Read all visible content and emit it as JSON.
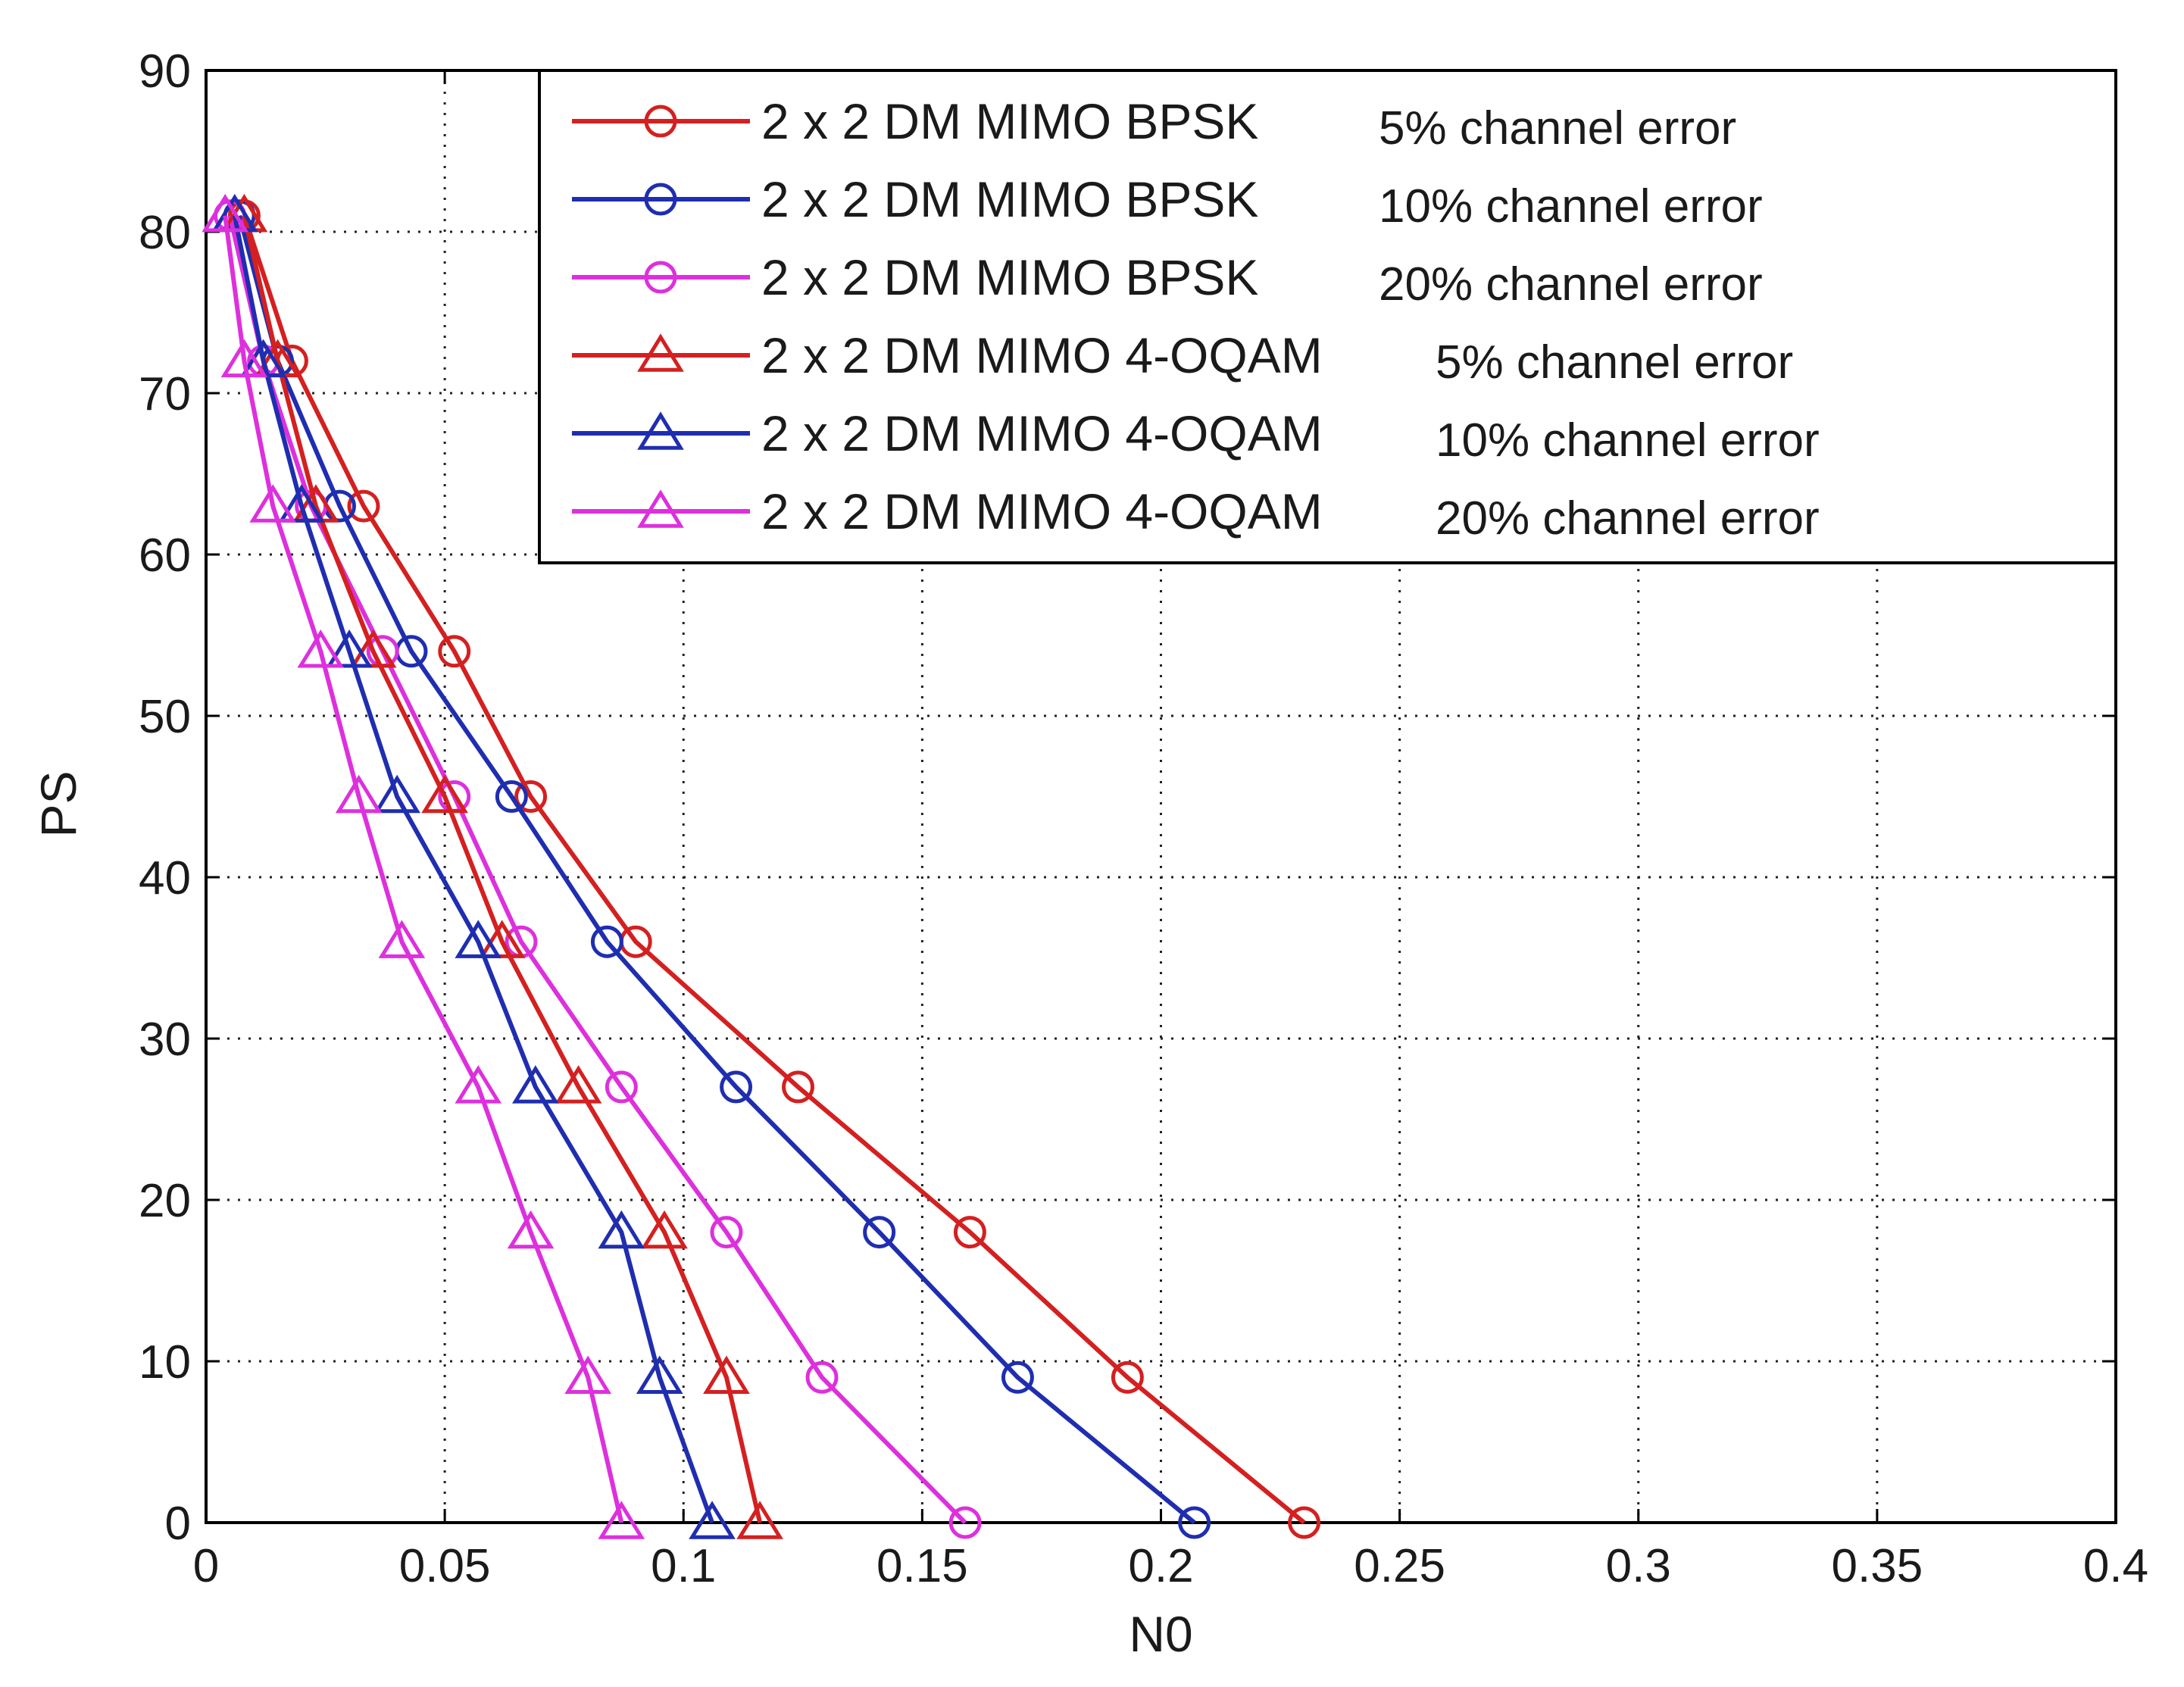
{
  "chart_data": {
    "type": "line",
    "title": "",
    "xlabel": "N0",
    "ylabel": "PS",
    "xlim": [
      0,
      0.4
    ],
    "ylim": [
      0,
      90
    ],
    "xticks": [
      0,
      0.05,
      0.1,
      0.15,
      0.2,
      0.25,
      0.3,
      0.35,
      0.4
    ],
    "xtick_labels": [
      "0",
      "0.05",
      "0.1",
      "0.15",
      "0.2",
      "0.25",
      "0.3",
      "0.35",
      "0.4"
    ],
    "yticks": [
      0,
      10,
      20,
      30,
      40,
      50,
      60,
      70,
      80,
      90
    ],
    "ytick_labels": [
      "0",
      "10",
      "20",
      "30",
      "40",
      "50",
      "60",
      "70",
      "80",
      "90"
    ],
    "grid": true,
    "legend_position": "top-right",
    "series": [
      {
        "name": "2 x 2 DM MIMO BPSK",
        "error_label": "5%  channel error",
        "color": "#d42020",
        "marker": "circle",
        "x": [
          0.23,
          0.193,
          0.16,
          0.124,
          0.09,
          0.068,
          0.052,
          0.033,
          0.018,
          0.008
        ],
        "y": [
          0,
          9,
          18,
          27,
          36,
          45,
          54,
          63,
          72,
          81
        ]
      },
      {
        "name": "2 x 2 DM MIMO BPSK",
        "error_label": "10%  channel error",
        "color": "#1f2eb0",
        "marker": "circle",
        "x": [
          0.207,
          0.17,
          0.141,
          0.111,
          0.084,
          0.064,
          0.043,
          0.028,
          0.015,
          0.007
        ],
        "y": [
          0,
          9,
          18,
          27,
          36,
          45,
          54,
          63,
          72,
          81
        ]
      },
      {
        "name": "2 x 2 DM MIMO BPSK",
        "error_label": "20%  channel error",
        "color": "#dd30dd",
        "marker": "circle",
        "x": [
          0.159,
          0.129,
          0.109,
          0.087,
          0.066,
          0.052,
          0.037,
          0.022,
          0.012,
          0.005
        ],
        "y": [
          0,
          9,
          18,
          27,
          36,
          45,
          54,
          63,
          72,
          81
        ]
      },
      {
        "name": "2 x 2 DM MIMO 4-OQAM",
        "error_label": "5%    channel error",
        "color": "#d42020",
        "marker": "triangle",
        "x": [
          0.116,
          0.109,
          0.096,
          0.078,
          0.062,
          0.05,
          0.035,
          0.023,
          0.015,
          0.008
        ],
        "y": [
          0,
          9,
          18,
          27,
          36,
          45,
          54,
          63,
          72,
          81
        ]
      },
      {
        "name": "2 x 2 DM MIMO 4-OQAM",
        "error_label": "10%  channel error",
        "color": "#1f2eb0",
        "marker": "triangle",
        "x": [
          0.106,
          0.095,
          0.087,
          0.069,
          0.057,
          0.04,
          0.03,
          0.02,
          0.012,
          0.006
        ],
        "y": [
          0,
          9,
          18,
          27,
          36,
          45,
          54,
          63,
          72,
          81
        ]
      },
      {
        "name": "2 x 2 DM MIMO 4-OQAM",
        "error_label": "20%  channel error",
        "color": "#dd30dd",
        "marker": "triangle",
        "x": [
          0.087,
          0.08,
          0.068,
          0.057,
          0.041,
          0.032,
          0.024,
          0.014,
          0.008,
          0.004
        ],
        "y": [
          0,
          9,
          18,
          27,
          36,
          45,
          54,
          63,
          72,
          81
        ]
      }
    ]
  }
}
